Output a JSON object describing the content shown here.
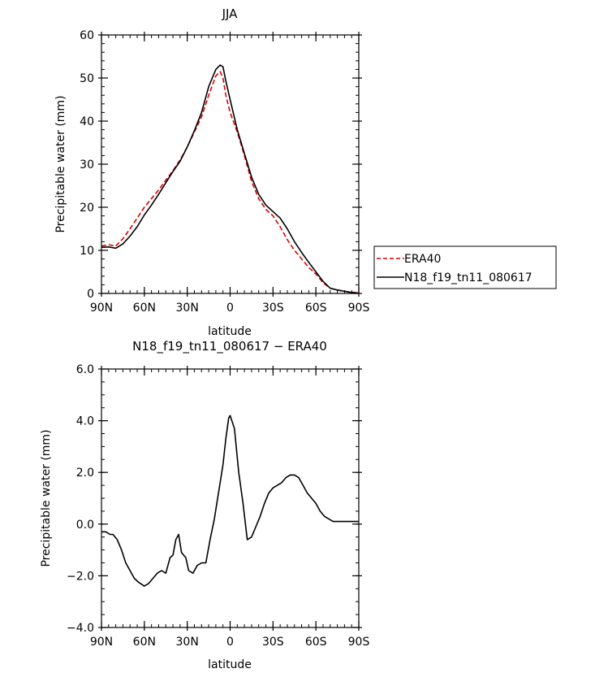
{
  "chart_data": [
    {
      "type": "line",
      "title": "JJA",
      "xlabel": "latitude",
      "ylabel": "Precipitable water (mm)",
      "xlim": [
        90,
        -90
      ],
      "ylim": [
        0,
        60
      ],
      "x_ticks": [
        90,
        60,
        30,
        0,
        -30,
        -60,
        -90
      ],
      "x_tick_labels": [
        "90N",
        "60N",
        "30N",
        "0",
        "30S",
        "60S",
        "90S"
      ],
      "y_ticks": [
        0,
        10,
        20,
        30,
        40,
        50,
        60
      ],
      "y_tick_labels": [
        "0",
        "10",
        "20",
        "30",
        "40",
        "50",
        "60"
      ],
      "legend_position": "right",
      "series": [
        {
          "name": "ERA40",
          "color": "#e00000",
          "dash": "dashed",
          "x": [
            90,
            85,
            80,
            75,
            70,
            65,
            60,
            55,
            50,
            45,
            40,
            35,
            30,
            25,
            20,
            15,
            10,
            7,
            5,
            3,
            0,
            -5,
            -10,
            -15,
            -20,
            -25,
            -30,
            -35,
            -40,
            -45,
            -50,
            -55,
            -60,
            -65,
            -70,
            -75,
            -80,
            -85,
            -90
          ],
          "y": [
            11,
            11.3,
            11,
            12.7,
            15,
            17.5,
            20,
            22,
            24,
            26.3,
            28.5,
            31,
            34,
            37.5,
            41,
            46,
            50.5,
            51.5,
            50,
            46,
            42,
            37.5,
            32,
            26,
            22,
            19.5,
            18,
            15.5,
            12.5,
            10,
            8,
            6,
            4.5,
            2.5,
            1.2,
            0.8,
            0.5,
            0.3,
            0.1
          ]
        },
        {
          "name": "N18_f19_tn11_080617",
          "color": "#000000",
          "dash": "solid",
          "x": [
            90,
            85,
            80,
            75,
            70,
            65,
            60,
            55,
            50,
            45,
            40,
            35,
            30,
            25,
            20,
            15,
            10,
            7,
            5,
            3,
            0,
            -5,
            -10,
            -15,
            -20,
            -25,
            -30,
            -35,
            -40,
            -45,
            -50,
            -55,
            -60,
            -65,
            -70,
            -75,
            -80,
            -85,
            -90
          ],
          "y": [
            10.7,
            10.8,
            10.5,
            11.5,
            13.3,
            15.5,
            18.2,
            20.5,
            23,
            25.7,
            28.3,
            30.7,
            34,
            37.8,
            42,
            48,
            52,
            53,
            52.6,
            49.3,
            45,
            38,
            32.5,
            27,
            23,
            20.5,
            19,
            17.5,
            15,
            12,
            9.5,
            7.2,
            5,
            2.8,
            1.2,
            0.8,
            0.5,
            0.2,
            0.1
          ]
        }
      ]
    },
    {
      "type": "line",
      "title": "N18_f19_tn11_080617 − ERA40",
      "xlabel": "latitude",
      "ylabel": "Precipitable water (mm)",
      "xlim": [
        90,
        -90
      ],
      "ylim": [
        -4,
        6
      ],
      "x_ticks": [
        90,
        60,
        30,
        0,
        -30,
        -60,
        -90
      ],
      "x_tick_labels": [
        "90N",
        "60N",
        "30N",
        "0",
        "30S",
        "60S",
        "90S"
      ],
      "y_ticks": [
        -4,
        -2,
        0,
        2,
        4,
        6
      ],
      "y_tick_labels": [
        "−4.0",
        "−2.0",
        "0.0",
        "2.0",
        "4.0",
        "6.0"
      ],
      "series": [
        {
          "color": "#000000",
          "dash": "solid",
          "x": [
            90,
            87,
            84,
            82,
            79,
            76,
            73,
            70,
            67,
            64,
            60,
            57,
            54,
            51,
            48,
            45,
            42,
            40,
            38,
            36,
            34,
            31,
            29,
            26,
            23,
            20,
            17,
            14,
            11,
            9,
            7,
            5,
            3,
            1,
            0,
            -3,
            -6,
            -9,
            -12,
            -15,
            -18,
            -21,
            -24,
            -27,
            -30,
            -33,
            -36,
            -39,
            -42,
            -45,
            -48,
            -51,
            -54,
            -57,
            -60,
            -63,
            -66,
            -69,
            -72,
            -75,
            -78,
            -81,
            -84,
            -87,
            -90
          ],
          "y": [
            -0.3,
            -0.3,
            -0.4,
            -0.4,
            -0.6,
            -1.0,
            -1.5,
            -1.8,
            -2.1,
            -2.25,
            -2.4,
            -2.3,
            -2.1,
            -1.9,
            -1.8,
            -1.9,
            -1.3,
            -1.2,
            -0.6,
            -0.4,
            -1.1,
            -1.3,
            -1.8,
            -1.9,
            -1.6,
            -1.5,
            -1.5,
            -0.6,
            0.2,
            0.9,
            1.6,
            2.3,
            3.3,
            4.1,
            4.2,
            3.7,
            2.0,
            0.8,
            -0.6,
            -0.5,
            -0.1,
            0.3,
            0.8,
            1.2,
            1.4,
            1.5,
            1.6,
            1.8,
            1.9,
            1.9,
            1.8,
            1.5,
            1.2,
            1.0,
            0.8,
            0.5,
            0.3,
            0.2,
            0.1,
            0.1,
            0.1,
            0.1,
            0.1,
            0.1,
            0.1
          ]
        }
      ]
    }
  ]
}
